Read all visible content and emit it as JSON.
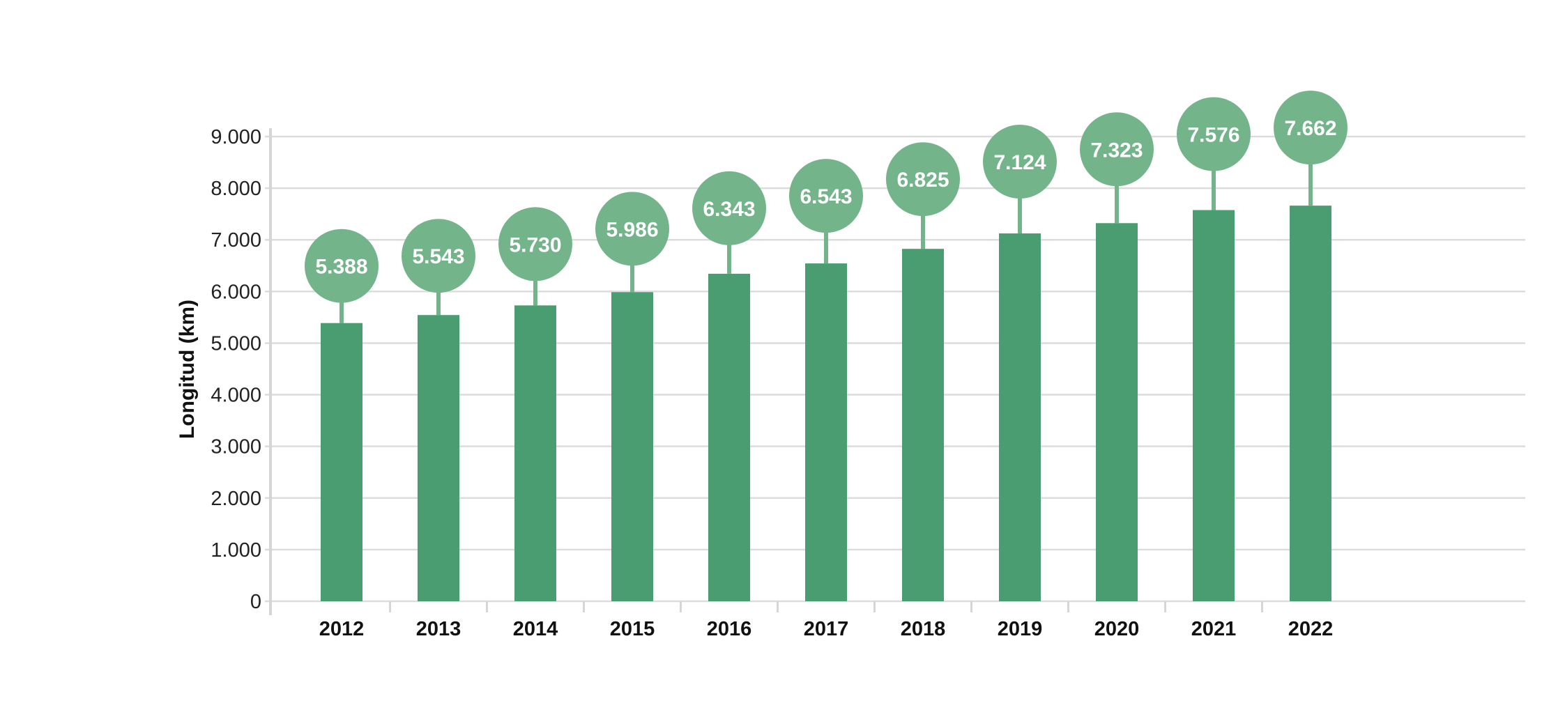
{
  "chart_data": {
    "type": "bar",
    "title": "",
    "xlabel": "",
    "ylabel": "Longitud (km)",
    "ylim": [
      0,
      9000
    ],
    "yticks": [
      0,
      1000,
      2000,
      3000,
      4000,
      5000,
      6000,
      7000,
      8000,
      9000
    ],
    "ytick_labels": [
      "0",
      "1.000",
      "2.000",
      "3.000",
      "4.000",
      "5.000",
      "6.000",
      "7.000",
      "8.000",
      "9.000"
    ],
    "grid": true,
    "categories": [
      "2012",
      "2013",
      "2014",
      "2015",
      "2016",
      "2017",
      "2018",
      "2019",
      "2020",
      "2021",
      "2022"
    ],
    "values": [
      5388,
      5543,
      5730,
      5986,
      6343,
      6543,
      6825,
      7124,
      7323,
      7576,
      7662
    ],
    "data_labels": [
      "5.388",
      "5.543",
      "5.730",
      "5.986",
      "6.343",
      "6.543",
      "6.825",
      "7.124",
      "7.323",
      "7.576",
      "7.662"
    ],
    "colors": {
      "bar": "#4a9d70",
      "bubble": "#74b48a",
      "grid": "#dcdcdc",
      "axis": "#d6d6d6"
    }
  }
}
